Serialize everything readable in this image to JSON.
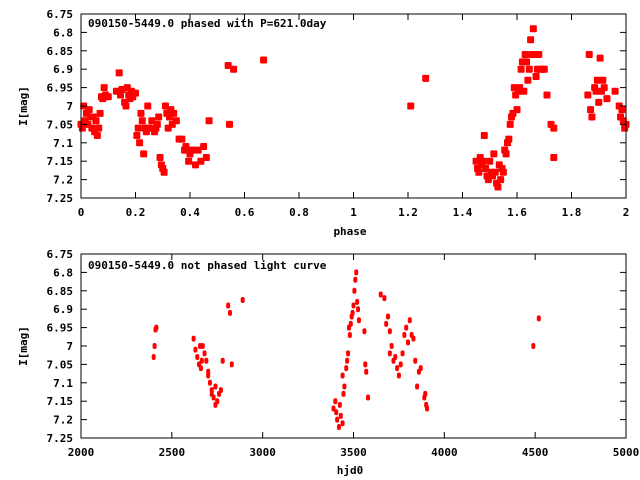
{
  "colors": {
    "points": "#ff0000",
    "axes": "#000000"
  },
  "chart_data": [
    {
      "type": "scatter",
      "title": "090150-5449.0 phased with P=621.0day",
      "xlabel": "phase",
      "ylabel": "I[mag]",
      "xlim": [
        0,
        2
      ],
      "ylim": [
        6.75,
        7.25
      ],
      "y_inverted": false,
      "grid": false,
      "xticks": [
        "0",
        "0.2",
        "0.4",
        "0.6",
        "0.8",
        "1",
        "1.2",
        "1.4",
        "1.6",
        "1.8",
        "2"
      ],
      "yticks": [
        "6.75",
        "6.8",
        "6.85",
        "6.9",
        "6.95",
        "7",
        "7.05",
        "7.1",
        "7.15",
        "7.2",
        "7.25"
      ],
      "points": [
        [
          0.0,
          7.05
        ],
        [
          0.005,
          7.06
        ],
        [
          0.01,
          7.0
        ],
        [
          0.015,
          7.04
        ],
        [
          0.02,
          7.02
        ],
        [
          0.025,
          7.05
        ],
        [
          0.03,
          7.01
        ],
        [
          0.035,
          7.03
        ],
        [
          0.04,
          7.06
        ],
        [
          0.045,
          7.03
        ],
        [
          0.05,
          7.07
        ],
        [
          0.055,
          7.04
        ],
        [
          0.06,
          7.08
        ],
        [
          0.065,
          7.06
        ],
        [
          0.07,
          7.02
        ],
        [
          0.075,
          6.975
        ],
        [
          0.08,
          6.98
        ],
        [
          0.085,
          6.95
        ],
        [
          0.09,
          6.97
        ],
        [
          0.1,
          6.975
        ],
        [
          0.13,
          6.96
        ],
        [
          0.14,
          6.91
        ],
        [
          0.145,
          6.97
        ],
        [
          0.15,
          6.955
        ],
        [
          0.16,
          6.99
        ],
        [
          0.165,
          7.0
        ],
        [
          0.17,
          6.95
        ],
        [
          0.175,
          6.97
        ],
        [
          0.18,
          6.98
        ],
        [
          0.185,
          6.96
        ],
        [
          0.19,
          6.975
        ],
        [
          0.2,
          6.965
        ],
        [
          0.205,
          7.08
        ],
        [
          0.21,
          7.06
        ],
        [
          0.215,
          7.1
        ],
        [
          0.22,
          7.02
        ],
        [
          0.225,
          7.04
        ],
        [
          0.23,
          7.13
        ],
        [
          0.235,
          7.06
        ],
        [
          0.24,
          7.07
        ],
        [
          0.245,
          7.0
        ],
        [
          0.25,
          7.06
        ],
        [
          0.26,
          7.04
        ],
        [
          0.27,
          7.07
        ],
        [
          0.275,
          7.06
        ],
        [
          0.28,
          7.05
        ],
        [
          0.285,
          7.03
        ],
        [
          0.29,
          7.14
        ],
        [
          0.295,
          7.16
        ],
        [
          0.3,
          7.17
        ],
        [
          0.305,
          7.18
        ],
        [
          0.31,
          7.0
        ],
        [
          0.315,
          7.02
        ],
        [
          0.32,
          7.06
        ],
        [
          0.325,
          7.03
        ],
        [
          0.33,
          7.01
        ],
        [
          0.335,
          7.05
        ],
        [
          0.34,
          7.02
        ],
        [
          0.35,
          7.04
        ],
        [
          0.36,
          7.09
        ],
        [
          0.37,
          7.09
        ],
        [
          0.38,
          7.12
        ],
        [
          0.385,
          7.11
        ],
        [
          0.39,
          7.12
        ],
        [
          0.395,
          7.15
        ],
        [
          0.4,
          7.13
        ],
        [
          0.41,
          7.12
        ],
        [
          0.42,
          7.16
        ],
        [
          0.43,
          7.12
        ],
        [
          0.44,
          7.15
        ],
        [
          0.45,
          7.11
        ],
        [
          0.46,
          7.14
        ],
        [
          0.47,
          7.04
        ],
        [
          0.54,
          6.89
        ],
        [
          0.545,
          7.05
        ],
        [
          0.56,
          6.9
        ],
        [
          0.67,
          6.875
        ],
        [
          1.21,
          7.0
        ],
        [
          1.265,
          6.925
        ],
        [
          1.45,
          7.15
        ],
        [
          1.455,
          7.17
        ],
        [
          1.46,
          7.18
        ],
        [
          1.465,
          7.14
        ],
        [
          1.47,
          7.16
        ],
        [
          1.475,
          7.15
        ],
        [
          1.48,
          7.08
        ],
        [
          1.485,
          7.17
        ],
        [
          1.49,
          7.19
        ],
        [
          1.495,
          7.2
        ],
        [
          1.5,
          7.15
        ],
        [
          1.505,
          7.18
        ],
        [
          1.51,
          7.19
        ],
        [
          1.515,
          7.13
        ],
        [
          1.52,
          7.18
        ],
        [
          1.525,
          7.21
        ],
        [
          1.53,
          7.22
        ],
        [
          1.535,
          7.16
        ],
        [
          1.54,
          7.2
        ],
        [
          1.545,
          7.17
        ],
        [
          1.55,
          7.18
        ],
        [
          1.555,
          7.12
        ],
        [
          1.56,
          7.13
        ],
        [
          1.565,
          7.1
        ],
        [
          1.57,
          7.09
        ],
        [
          1.575,
          7.05
        ],
        [
          1.58,
          7.03
        ],
        [
          1.585,
          7.02
        ],
        [
          1.59,
          6.95
        ],
        [
          1.595,
          6.97
        ],
        [
          1.6,
          7.01
        ],
        [
          1.605,
          6.96
        ],
        [
          1.61,
          6.95
        ],
        [
          1.615,
          6.9
        ],
        [
          1.62,
          6.88
        ],
        [
          1.625,
          6.96
        ],
        [
          1.63,
          6.86
        ],
        [
          1.635,
          6.88
        ],
        [
          1.64,
          6.93
        ],
        [
          1.645,
          6.9
        ],
        [
          1.65,
          6.82
        ],
        [
          1.655,
          6.86
        ],
        [
          1.66,
          6.79
        ],
        [
          1.665,
          6.86
        ],
        [
          1.67,
          6.92
        ],
        [
          1.675,
          6.9
        ],
        [
          1.68,
          6.86
        ],
        [
          1.685,
          6.9
        ],
        [
          1.695,
          6.9
        ],
        [
          1.7,
          6.9
        ],
        [
          1.71,
          6.97
        ],
        [
          1.725,
          7.05
        ],
        [
          1.735,
          7.06
        ],
        [
          1.735,
          7.14
        ],
        [
          1.86,
          6.97
        ],
        [
          1.865,
          6.86
        ],
        [
          1.87,
          7.01
        ],
        [
          1.875,
          7.03
        ],
        [
          1.885,
          6.95
        ],
        [
          1.89,
          6.96
        ],
        [
          1.895,
          6.93
        ],
        [
          1.9,
          6.99
        ],
        [
          1.905,
          6.87
        ],
        [
          1.91,
          6.96
        ],
        [
          1.915,
          6.93
        ],
        [
          1.92,
          6.95
        ],
        [
          1.93,
          6.98
        ],
        [
          1.96,
          6.96
        ],
        [
          1.975,
          7.0
        ],
        [
          1.98,
          7.03
        ],
        [
          1.985,
          7.01
        ],
        [
          1.99,
          7.04
        ],
        [
          1.995,
          7.06
        ],
        [
          2.0,
          7.05
        ]
      ]
    },
    {
      "type": "scatter",
      "title": "090150-5449.0 not phased light curve",
      "xlabel": "hjd0",
      "ylabel": "I[mag]",
      "xlim": [
        2000,
        5000
      ],
      "ylim": [
        6.75,
        7.25
      ],
      "grid": false,
      "xticks": [
        "2000",
        "2500",
        "3000",
        "3500",
        "4000",
        "4500",
        "5000"
      ],
      "yticks": [
        "6.75",
        "6.8",
        "6.85",
        "6.9",
        "6.95",
        "7",
        "7.05",
        "7.1",
        "7.15",
        "7.2",
        "7.25"
      ],
      "points": [
        [
          2400,
          7.03
        ],
        [
          2405,
          7.0
        ],
        [
          2410,
          6.955
        ],
        [
          2415,
          6.95
        ],
        [
          2620,
          6.98
        ],
        [
          2630,
          7.01
        ],
        [
          2640,
          7.03
        ],
        [
          2650,
          7.05
        ],
        [
          2655,
          7.0
        ],
        [
          2660,
          7.06
        ],
        [
          2665,
          7.04
        ],
        [
          2670,
          7.0
        ],
        [
          2680,
          7.02
        ],
        [
          2690,
          7.04
        ],
        [
          2700,
          7.07
        ],
        [
          2700,
          7.08
        ],
        [
          2710,
          7.1
        ],
        [
          2720,
          7.12
        ],
        [
          2720,
          7.13
        ],
        [
          2730,
          7.14
        ],
        [
          2740,
          7.11
        ],
        [
          2740,
          7.16
        ],
        [
          2750,
          7.15
        ],
        [
          2760,
          7.13
        ],
        [
          2770,
          7.12
        ],
        [
          2780,
          7.04
        ],
        [
          2810,
          6.89
        ],
        [
          2820,
          6.91
        ],
        [
          2830,
          7.05
        ],
        [
          2890,
          6.875
        ],
        [
          3390,
          7.17
        ],
        [
          3400,
          7.15
        ],
        [
          3405,
          7.18
        ],
        [
          3410,
          7.2
        ],
        [
          3420,
          7.22
        ],
        [
          3425,
          7.16
        ],
        [
          3430,
          7.19
        ],
        [
          3440,
          7.21
        ],
        [
          3440,
          7.08
        ],
        [
          3445,
          7.13
        ],
        [
          3450,
          7.11
        ],
        [
          3460,
          7.06
        ],
        [
          3465,
          7.04
        ],
        [
          3470,
          7.02
        ],
        [
          3475,
          6.95
        ],
        [
          3480,
          6.97
        ],
        [
          3485,
          6.94
        ],
        [
          3490,
          6.92
        ],
        [
          3495,
          6.91
        ],
        [
          3500,
          6.89
        ],
        [
          3505,
          6.85
        ],
        [
          3510,
          6.82
        ],
        [
          3515,
          6.8
        ],
        [
          3520,
          6.88
        ],
        [
          3525,
          6.9
        ],
        [
          3530,
          6.93
        ],
        [
          3560,
          6.96
        ],
        [
          3565,
          7.05
        ],
        [
          3570,
          7.07
        ],
        [
          3580,
          7.14
        ],
        [
          3650,
          6.86
        ],
        [
          3670,
          6.87
        ],
        [
          3680,
          6.94
        ],
        [
          3690,
          6.92
        ],
        [
          3700,
          6.96
        ],
        [
          3700,
          7.02
        ],
        [
          3710,
          7.0
        ],
        [
          3720,
          7.04
        ],
        [
          3730,
          7.03
        ],
        [
          3740,
          7.06
        ],
        [
          3750,
          7.08
        ],
        [
          3760,
          7.05
        ],
        [
          3770,
          7.02
        ],
        [
          3780,
          6.97
        ],
        [
          3790,
          6.95
        ],
        [
          3800,
          6.99
        ],
        [
          3810,
          6.93
        ],
        [
          3820,
          6.97
        ],
        [
          3830,
          6.98
        ],
        [
          3840,
          7.04
        ],
        [
          3850,
          7.11
        ],
        [
          3860,
          7.07
        ],
        [
          3870,
          7.06
        ],
        [
          3890,
          7.14
        ],
        [
          3895,
          7.13
        ],
        [
          3900,
          7.16
        ],
        [
          3905,
          7.17
        ],
        [
          4490,
          7.0
        ],
        [
          4520,
          6.925
        ]
      ]
    }
  ]
}
